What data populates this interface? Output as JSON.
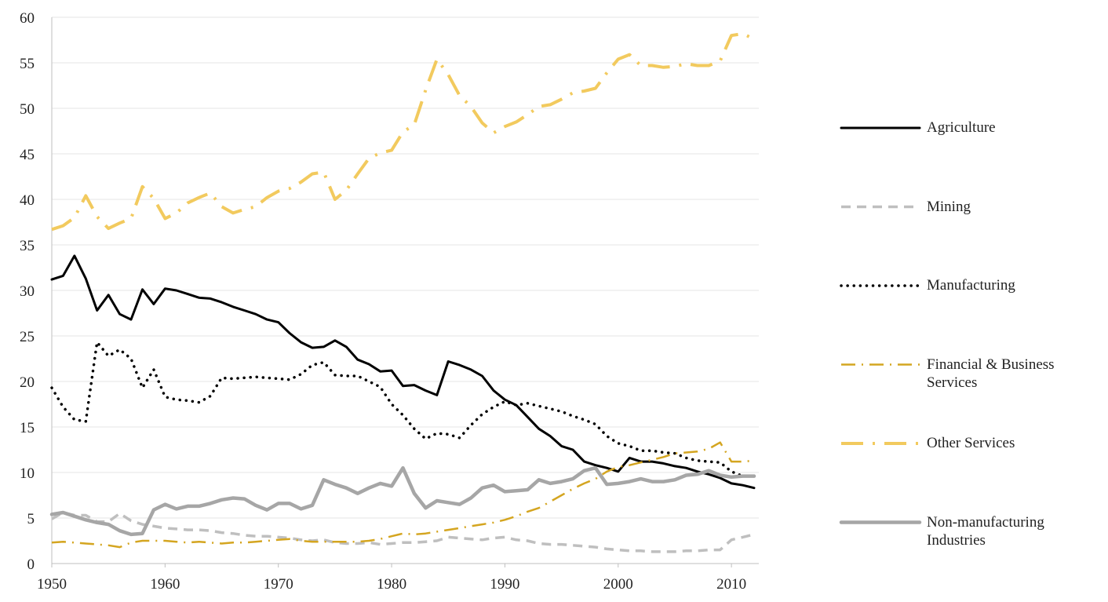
{
  "chart_data": {
    "type": "line",
    "x": [
      1950,
      1951,
      1952,
      1953,
      1954,
      1955,
      1956,
      1957,
      1958,
      1959,
      1960,
      1961,
      1962,
      1963,
      1964,
      1965,
      1966,
      1967,
      1968,
      1969,
      1970,
      1971,
      1972,
      1973,
      1974,
      1975,
      1976,
      1977,
      1978,
      1979,
      1980,
      1981,
      1982,
      1983,
      1984,
      1985,
      1986,
      1987,
      1988,
      1989,
      1990,
      1991,
      1992,
      1993,
      1994,
      1995,
      1996,
      1997,
      1998,
      1999,
      2000,
      2001,
      2002,
      2003,
      2004,
      2005,
      2006,
      2007,
      2008,
      2009,
      2010,
      2011,
      2012
    ],
    "xlim": [
      1950,
      2012
    ],
    "xticks": [
      1950,
      1960,
      1970,
      1980,
      1990,
      2000,
      2010
    ],
    "ylim": [
      0,
      60
    ],
    "yticks": [
      0,
      5,
      10,
      15,
      20,
      25,
      30,
      35,
      40,
      45,
      50,
      55,
      60
    ],
    "grid": true,
    "legend": "right",
    "series": [
      {
        "name": "Agriculture",
        "color": "#000000",
        "dash": "solid",
        "values": [
          31.2,
          31.6,
          33.8,
          31.3,
          27.8,
          29.5,
          27.4,
          26.8,
          30.1,
          28.5,
          30.2,
          30.0,
          29.6,
          29.2,
          29.1,
          28.7,
          28.2,
          27.8,
          27.4,
          26.8,
          26.5,
          25.3,
          24.3,
          23.7,
          23.8,
          24.5,
          23.8,
          22.4,
          21.9,
          21.1,
          21.2,
          19.5,
          19.6,
          19.0,
          18.5,
          22.2,
          21.8,
          21.3,
          20.6,
          19.0,
          18.0,
          17.4,
          16.1,
          14.8,
          14.0,
          12.9,
          12.5,
          11.2,
          10.8,
          10.5,
          10.1,
          11.6,
          11.2,
          11.2,
          11.0,
          10.7,
          10.5,
          10.1,
          9.8,
          9.4,
          8.8,
          8.6,
          8.3
        ]
      },
      {
        "name": "Mining",
        "color": "#bfbfbf",
        "dash": "dash",
        "values": [
          4.9,
          5.6,
          5.3,
          5.3,
          4.6,
          4.6,
          5.5,
          4.7,
          4.3,
          4.1,
          3.9,
          3.8,
          3.7,
          3.7,
          3.6,
          3.4,
          3.3,
          3.1,
          3.0,
          3.0,
          2.9,
          2.8,
          2.6,
          2.5,
          2.6,
          2.3,
          2.2,
          2.2,
          2.3,
          2.1,
          2.2,
          2.3,
          2.3,
          2.4,
          2.5,
          2.9,
          2.8,
          2.7,
          2.6,
          2.8,
          2.9,
          2.6,
          2.5,
          2.2,
          2.1,
          2.1,
          2.0,
          1.9,
          1.8,
          1.6,
          1.5,
          1.4,
          1.4,
          1.3,
          1.3,
          1.3,
          1.4,
          1.4,
          1.5,
          1.5,
          2.6,
          2.9,
          3.2
        ]
      },
      {
        "name": "Manufacturing",
        "color": "#000000",
        "dash": "dot",
        "values": [
          19.3,
          17.2,
          15.8,
          15.6,
          24.3,
          22.8,
          23.5,
          22.5,
          19.3,
          21.3,
          18.3,
          18.0,
          17.9,
          17.7,
          18.4,
          20.4,
          20.3,
          20.4,
          20.5,
          20.4,
          20.3,
          20.2,
          20.8,
          21.8,
          22.1,
          20.7,
          20.6,
          20.6,
          20.0,
          19.4,
          17.5,
          16.3,
          14.8,
          13.7,
          14.3,
          14.2,
          13.8,
          15.2,
          16.4,
          17.2,
          17.8,
          17.4,
          17.6,
          17.3,
          17.0,
          16.7,
          16.2,
          15.8,
          15.3,
          14.0,
          13.2,
          12.9,
          12.4,
          12.4,
          12.2,
          12.1,
          11.6,
          11.3,
          11.2,
          11.1,
          10.1,
          9.6,
          9.6
        ]
      },
      {
        "name": "Financial & Business Services",
        "color": "#d4a520",
        "dash": "dashdot",
        "values": [
          2.3,
          2.4,
          2.3,
          2.2,
          2.1,
          2.0,
          1.8,
          2.3,
          2.5,
          2.5,
          2.5,
          2.4,
          2.3,
          2.4,
          2.3,
          2.2,
          2.3,
          2.3,
          2.4,
          2.5,
          2.6,
          2.7,
          2.5,
          2.4,
          2.4,
          2.4,
          2.4,
          2.4,
          2.5,
          2.7,
          3.0,
          3.3,
          3.2,
          3.3,
          3.5,
          3.7,
          3.9,
          4.1,
          4.3,
          4.5,
          4.8,
          5.2,
          5.7,
          6.1,
          6.8,
          7.5,
          8.2,
          8.8,
          9.3,
          10.1,
          10.6,
          10.8,
          11.1,
          11.4,
          11.7,
          12.1,
          12.2,
          12.3,
          12.6,
          13.3,
          11.2,
          11.2,
          11.3
        ]
      },
      {
        "name": "Other Services",
        "color": "#f2ca5e",
        "dash": "longdashdot",
        "values": [
          36.7,
          37.1,
          38.0,
          40.4,
          38.1,
          36.8,
          37.4,
          37.9,
          41.4,
          40.1,
          37.9,
          38.5,
          39.6,
          40.2,
          40.7,
          39.2,
          38.5,
          38.9,
          39.2,
          40.2,
          40.9,
          41.2,
          41.9,
          42.8,
          43.0,
          40.0,
          41.0,
          42.8,
          44.5,
          45.1,
          45.4,
          47.4,
          48.2,
          52.0,
          55.4,
          53.7,
          51.4,
          50.2,
          48.4,
          47.3,
          48.0,
          48.5,
          49.3,
          50.2,
          50.4,
          51.0,
          51.7,
          51.9,
          52.2,
          53.9,
          55.4,
          55.9,
          54.7,
          54.7,
          54.5,
          54.6,
          54.9,
          54.7,
          54.7,
          55.2,
          58.0,
          58.2,
          57.6
        ]
      },
      {
        "name": "Non-manufacturing Industries",
        "color": "#a6a6a6",
        "dash": "solid",
        "values": [
          5.4,
          5.6,
          5.2,
          4.8,
          4.5,
          4.3,
          3.6,
          3.2,
          3.3,
          5.9,
          6.5,
          6.0,
          6.3,
          6.3,
          6.6,
          7.0,
          7.2,
          7.1,
          6.4,
          5.9,
          6.6,
          6.6,
          6.0,
          6.4,
          9.2,
          8.7,
          8.3,
          7.7,
          8.3,
          8.8,
          8.5,
          10.5,
          7.7,
          6.1,
          6.9,
          6.7,
          6.5,
          7.2,
          8.3,
          8.6,
          7.9,
          8.0,
          8.1,
          9.2,
          8.8,
          9.0,
          9.3,
          10.2,
          10.5,
          8.7,
          8.8,
          9.0,
          9.3,
          9.0,
          9.0,
          9.2,
          9.7,
          9.8,
          10.2,
          9.7,
          9.5,
          9.6,
          9.6
        ]
      }
    ]
  }
}
